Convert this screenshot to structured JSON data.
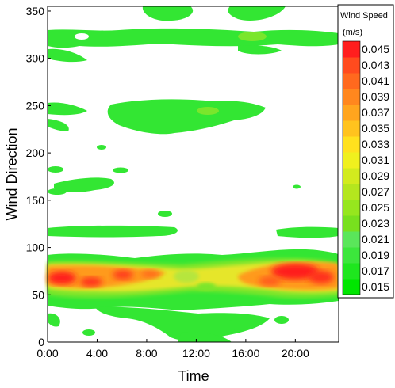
{
  "chart_data": {
    "type": "heatmap",
    "xlabel": "Time",
    "ylabel": "Wind Direction",
    "xlim": [
      0,
      23.5
    ],
    "ylim": [
      0,
      355
    ],
    "x_ticks": [
      {
        "value": 0,
        "label": "0:00"
      },
      {
        "value": 4,
        "label": "4:00"
      },
      {
        "value": 8,
        "label": "8:00"
      },
      {
        "value": 12,
        "label": "12:00"
      },
      {
        "value": 16,
        "label": "16:00"
      },
      {
        "value": 20,
        "label": "20:00"
      }
    ],
    "y_ticks": [
      0,
      50,
      100,
      150,
      200,
      250,
      300,
      350
    ],
    "colorbar": {
      "title": "Wind Speed",
      "unit": "(m/s)",
      "levels": [
        "0.015",
        "0.017",
        "0.019",
        "0.021",
        "0.023",
        "0.025",
        "0.027",
        "0.029",
        "0.031",
        "0.033",
        "0.035",
        "0.037",
        "0.039",
        "0.041",
        "0.043",
        "0.045"
      ],
      "colors": [
        "#00e600",
        "#1ee61e",
        "#3ce63c",
        "#5ae65a",
        "#78e01e",
        "#96e61e",
        "#b4e61e",
        "#d2eb1e",
        "#f0f01e",
        "#ffe11e",
        "#ffc31e",
        "#ffa51e",
        "#ff871e",
        "#ff691e",
        "#ff4b1e",
        "#ff1e1e"
      ]
    },
    "colors": {
      "low": "#33e633",
      "mid_low": "#7ae62c",
      "mid": "#e6e62c",
      "mid_high": "#ff9a1e",
      "high": "#ff1e1e"
    },
    "regions": [
      {
        "level": "low",
        "x_range": [
          0,
          23.5
        ],
        "y_range": [
          300,
          340
        ]
      },
      {
        "level": "low",
        "x_range": [
          0,
          18
        ],
        "y_range": [
          220,
          255
        ]
      },
      {
        "level": "low",
        "x_range": [
          0,
          23.5
        ],
        "y_range": [
          40,
          90
        ]
      },
      {
        "level": "high",
        "x_range": [
          0,
          10
        ],
        "y_range": [
          55,
          75
        ]
      },
      {
        "level": "high",
        "x_range": [
          18,
          23
        ],
        "y_range": [
          55,
          85
        ]
      }
    ]
  }
}
